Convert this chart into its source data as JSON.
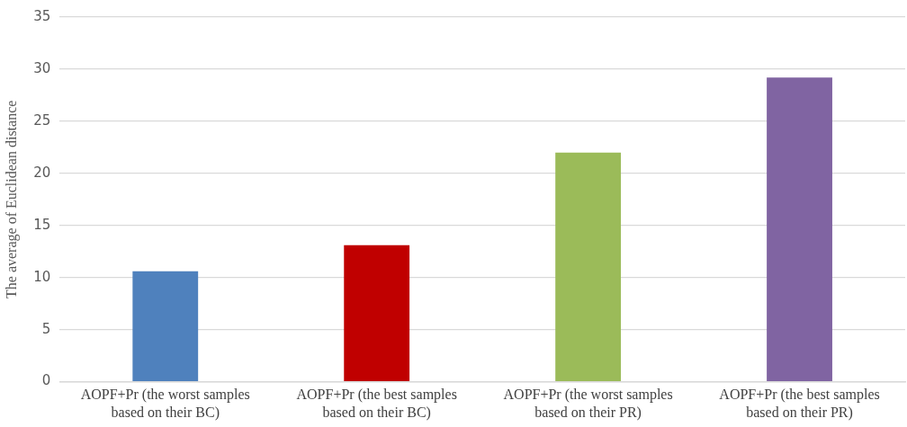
{
  "chart_data": {
    "type": "bar",
    "ylabel": "The average of Euclidean distance",
    "categories": [
      "AOPF+Pr (the worst samples based on their BC)",
      "AOPF+Pr (the best samples based on their BC)",
      "AOPF+Pr (the worst samples based on their PR)",
      "AOPF+Pr (the best samples based on their PR)"
    ],
    "values": [
      10.6,
      13.1,
      22.0,
      29.2
    ],
    "colors": [
      "#4f81bd",
      "#c00000",
      "#9bbb59",
      "#8064a2"
    ],
    "ylim": [
      0,
      35
    ],
    "yticks": [
      0,
      5,
      10,
      15,
      20,
      25,
      30,
      35
    ],
    "grid": "y",
    "legend": false
  }
}
